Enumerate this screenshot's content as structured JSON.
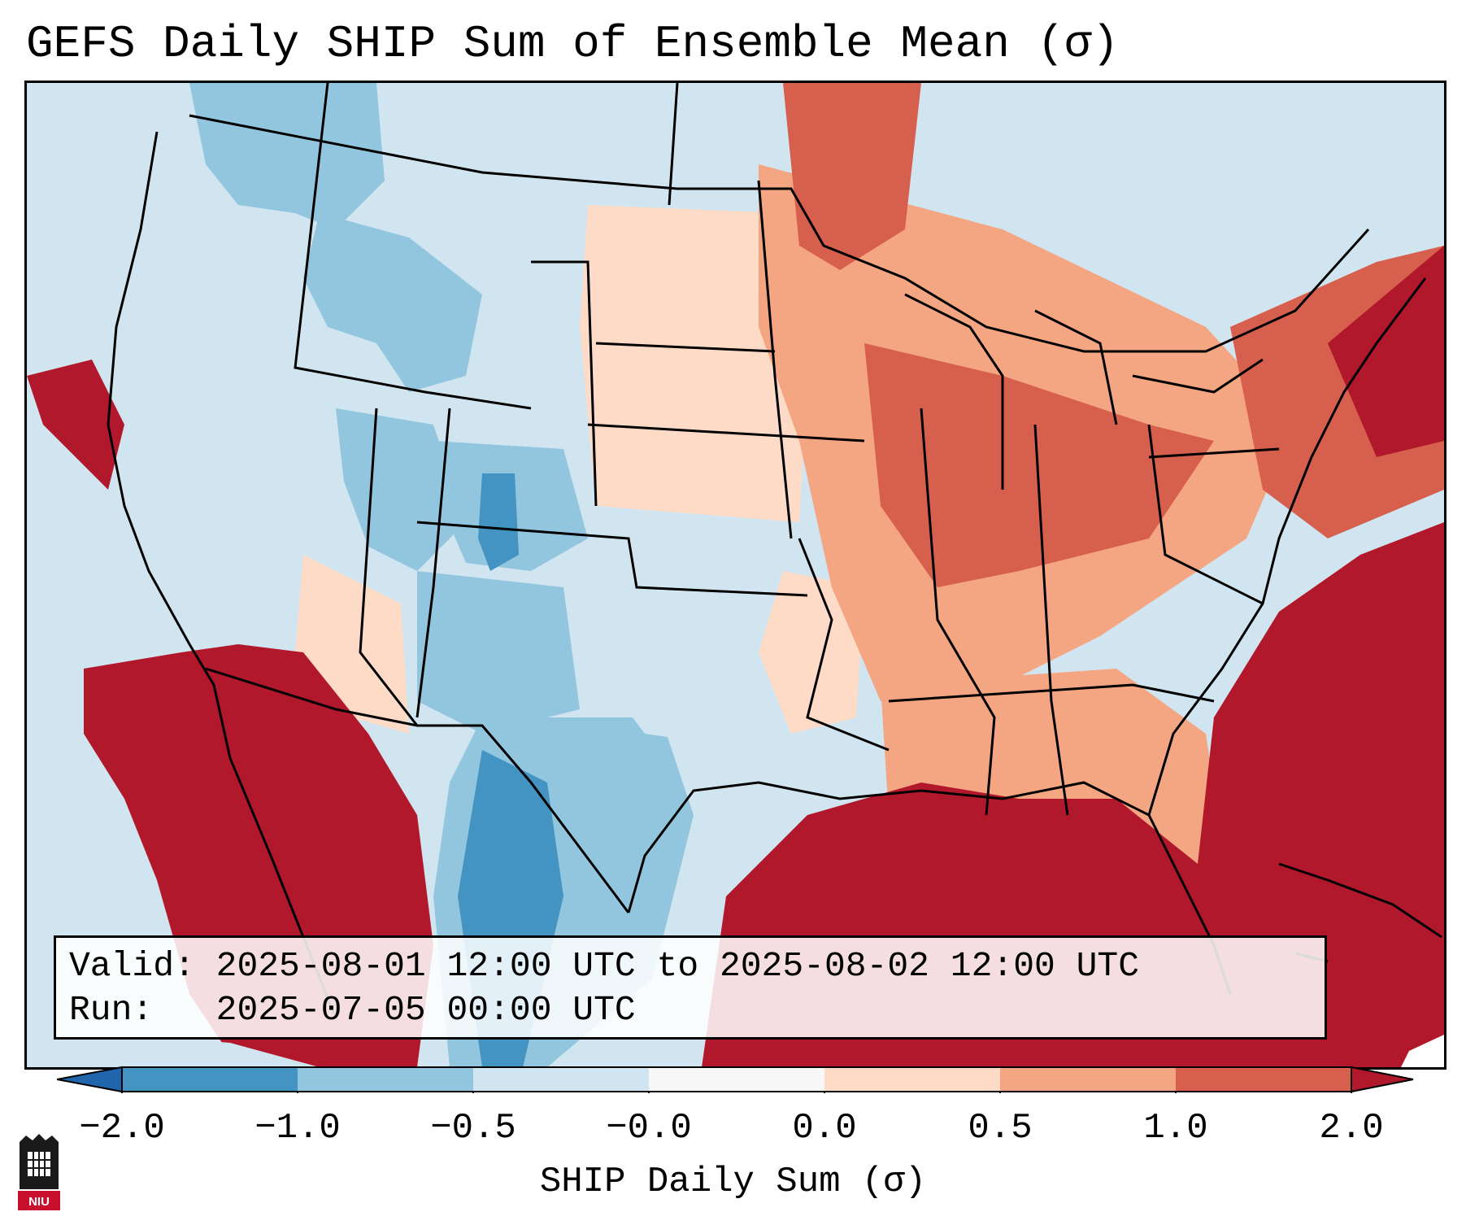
{
  "title": "GEFS Daily SHIP Sum of Ensemble Mean (σ)",
  "info": {
    "valid_label": "Valid:",
    "valid_value": "2025-08-01 12:00 UTC to 2025-08-02 12:00 UTC",
    "run_label": "Run:",
    "run_value": "2025-07-05 00:00 UTC"
  },
  "colorbar": {
    "label": "SHIP Daily Sum (σ)",
    "ticks": [
      "−2.0",
      "−1.0",
      "−0.5",
      "−0.0",
      "0.0",
      "0.5",
      "1.0",
      "2.0"
    ],
    "colors": [
      "#4393c3",
      "#92c5de",
      "#d1e5f0",
      "#f7f7f7",
      "#fddbc7",
      "#f4a582",
      "#d6604d",
      "#b2182b"
    ],
    "extend": "both"
  },
  "map": {
    "region": "CONUS",
    "ocean_default_color": "#d1e5f0",
    "warm_anomaly_color": "#b2182b"
  },
  "logo": {
    "text": "NIU"
  }
}
